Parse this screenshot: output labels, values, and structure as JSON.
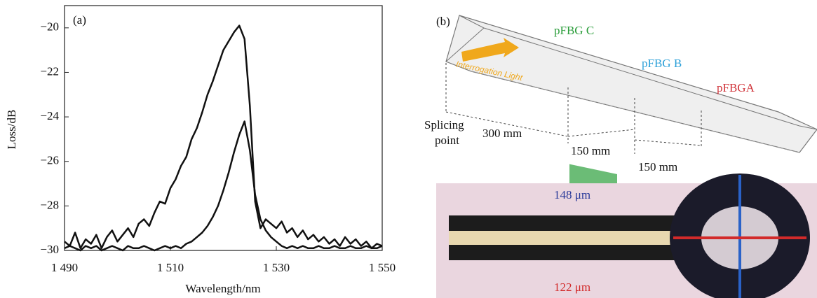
{
  "chart_data": {
    "type": "line",
    "panel_label": "(a)",
    "ylabel": "Loss/dB",
    "xlabel": "Wavelength/nm",
    "x": [
      1490,
      1491,
      1492,
      1493,
      1494,
      1495,
      1496,
      1497,
      1498,
      1499,
      1500,
      1501,
      1502,
      1503,
      1504,
      1505,
      1506,
      1507,
      1508,
      1509,
      1510,
      1511,
      1512,
      1513,
      1514,
      1515,
      1516,
      1517,
      1518,
      1519,
      1520,
      1521,
      1522,
      1523,
      1524,
      1525,
      1526,
      1527,
      1528,
      1529,
      1530,
      1531,
      1532,
      1533,
      1534,
      1535,
      1536,
      1537,
      1538,
      1539,
      1540,
      1541,
      1542,
      1543,
      1544,
      1545,
      1546,
      1547,
      1548,
      1549,
      1550
    ],
    "series": [
      {
        "color": "#111111",
        "values": [
          -29.6,
          -29.8,
          -29.2,
          -29.9,
          -29.5,
          -29.7,
          -29.3,
          -29.9,
          -29.4,
          -29.1,
          -29.6,
          -29.3,
          -29.0,
          -29.4,
          -28.8,
          -28.6,
          -28.9,
          -28.3,
          -27.8,
          -27.9,
          -27.2,
          -26.8,
          -26.2,
          -25.8,
          -25.0,
          -24.5,
          -23.8,
          -23.0,
          -22.4,
          -21.7,
          -21.0,
          -20.6,
          -20.2,
          -19.9,
          -20.5,
          -23.5,
          -27.8,
          -29.0,
          -28.6,
          -28.8,
          -29.0,
          -28.7,
          -29.2,
          -29.0,
          -29.4,
          -29.1,
          -29.5,
          -29.3,
          -29.6,
          -29.4,
          -29.7,
          -29.5,
          -29.8,
          -29.4,
          -29.7,
          -29.5,
          -29.8,
          -29.6,
          -29.9,
          -29.7,
          -29.8
        ]
      },
      {
        "color": "#111111",
        "values": [
          -29.9,
          -29.8,
          -29.9,
          -30.0,
          -29.8,
          -29.9,
          -29.8,
          -30.0,
          -29.9,
          -29.8,
          -29.9,
          -30.0,
          -29.8,
          -29.9,
          -29.9,
          -29.8,
          -29.9,
          -30.0,
          -29.9,
          -29.8,
          -29.9,
          -29.8,
          -29.9,
          -29.7,
          -29.6,
          -29.4,
          -29.2,
          -28.9,
          -28.5,
          -28.0,
          -27.3,
          -26.5,
          -25.6,
          -24.8,
          -24.2,
          -25.5,
          -27.5,
          -28.6,
          -29.1,
          -29.4,
          -29.6,
          -29.8,
          -29.9,
          -29.8,
          -29.9,
          -29.8,
          -29.9,
          -29.9,
          -29.8,
          -29.9,
          -29.9,
          -29.8,
          -29.9,
          -29.9,
          -29.8,
          -29.9,
          -29.9,
          -29.8,
          -29.9,
          -29.9,
          -29.8
        ]
      }
    ],
    "xlim": [
      1490,
      1550
    ],
    "xticks": [
      {
        "value": 1490,
        "label": "1 490"
      },
      {
        "value": 1510,
        "label": "1 510"
      },
      {
        "value": 1530,
        "label": "1 530"
      },
      {
        "value": 1550,
        "label": "1 550"
      }
    ],
    "ylim": [
      -30,
      -19
    ],
    "yticks": [
      {
        "value": -30,
        "label": "−30"
      },
      {
        "value": -28,
        "label": "−28"
      },
      {
        "value": -26,
        "label": "−26"
      },
      {
        "value": -24,
        "label": "−24"
      },
      {
        "value": -22,
        "label": "−22"
      },
      {
        "value": -20,
        "label": "−20"
      }
    ]
  },
  "diagram": {
    "panel_label": "(b)",
    "light": "Interrogation Light",
    "grating_c": "pFBG C",
    "grating_b": "pFBG B",
    "grating_a": "pFBGA",
    "splice": [
      "Splicing",
      "point"
    ],
    "dist_1": "300 mm",
    "dist_2": "150 mm",
    "dist_3": "150 mm"
  },
  "photo": {
    "outer_diameter": "148 μm",
    "inner_diameter": "122 μm"
  }
}
